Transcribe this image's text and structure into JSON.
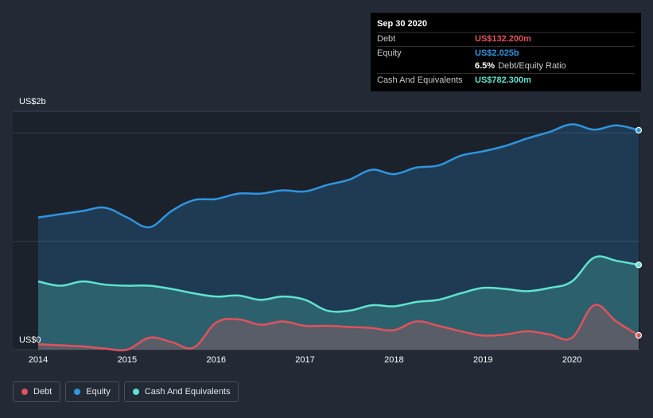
{
  "tooltip": {
    "date": "Sep 30 2020",
    "debt_label": "Debt",
    "debt_value": "US$132.200m",
    "equity_label": "Equity",
    "equity_value": "US$2.025b",
    "ratio_value": "6.5%",
    "ratio_label": "Debt/Equity Ratio",
    "cash_label": "Cash And Equivalents",
    "cash_value": "US$782.300m"
  },
  "legend": {
    "debt": "Debt",
    "equity": "Equity",
    "cash": "Cash And Equivalents"
  },
  "colors": {
    "debt": "#e0525c",
    "equity": "#2f95e0",
    "cash": "#5fe3cf",
    "background": "#232a36"
  },
  "chart_data": {
    "type": "area",
    "title": "",
    "xlabel": "",
    "ylabel": "",
    "y_top_label": "US$2b",
    "y_bottom_label": "US$0",
    "ylim": [
      0,
      2.2
    ],
    "xlim": [
      2014,
      2020.75
    ],
    "xticks": [
      "2014",
      "2015",
      "2016",
      "2017",
      "2018",
      "2019",
      "2020"
    ],
    "x": [
      2014.0,
      2014.25,
      2014.5,
      2014.75,
      2015.0,
      2015.25,
      2015.5,
      2015.75,
      2016.0,
      2016.25,
      2016.5,
      2016.75,
      2017.0,
      2017.25,
      2017.5,
      2017.75,
      2018.0,
      2018.25,
      2018.5,
      2018.75,
      2019.0,
      2019.25,
      2019.5,
      2019.75,
      2020.0,
      2020.25,
      2020.5,
      2020.75
    ],
    "series": [
      {
        "name": "Equity",
        "values": [
          1.22,
          1.25,
          1.28,
          1.31,
          1.22,
          1.13,
          1.28,
          1.38,
          1.39,
          1.44,
          1.44,
          1.47,
          1.46,
          1.52,
          1.57,
          1.66,
          1.62,
          1.68,
          1.7,
          1.79,
          1.83,
          1.88,
          1.95,
          2.01,
          2.08,
          2.03,
          2.07,
          2.025
        ]
      },
      {
        "name": "Cash And Equivalents",
        "values": [
          0.63,
          0.59,
          0.63,
          0.6,
          0.59,
          0.59,
          0.56,
          0.52,
          0.49,
          0.5,
          0.46,
          0.49,
          0.46,
          0.36,
          0.36,
          0.41,
          0.4,
          0.44,
          0.46,
          0.52,
          0.57,
          0.56,
          0.54,
          0.57,
          0.63,
          0.85,
          0.82,
          0.7823
        ]
      },
      {
        "name": "Debt",
        "values": [
          0.05,
          0.04,
          0.03,
          0.01,
          0.0,
          0.11,
          0.07,
          0.02,
          0.25,
          0.28,
          0.23,
          0.26,
          0.22,
          0.22,
          0.21,
          0.2,
          0.18,
          0.26,
          0.22,
          0.17,
          0.13,
          0.14,
          0.17,
          0.14,
          0.11,
          0.41,
          0.26,
          0.1322
        ]
      }
    ]
  }
}
